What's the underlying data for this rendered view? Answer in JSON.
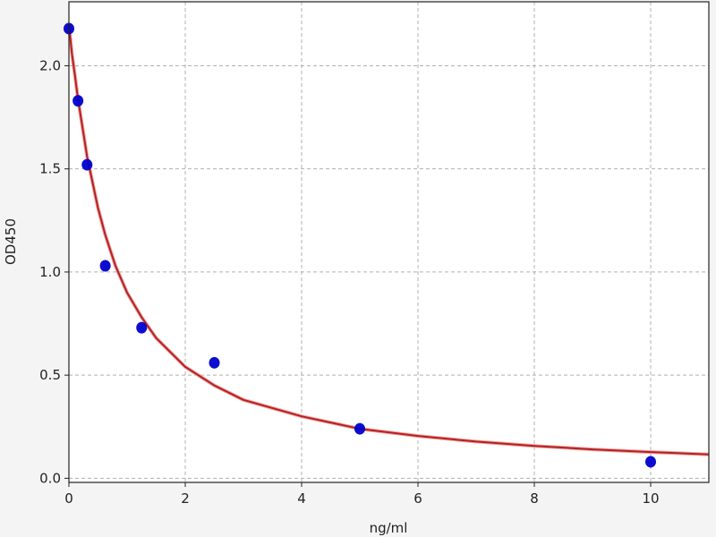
{
  "chart_data": {
    "type": "scatter",
    "title": "",
    "xlabel": "ng/ml",
    "ylabel": "OD450",
    "xlim": [
      0,
      11
    ],
    "ylim": [
      -0.02,
      2.31
    ],
    "xticks": [
      "0",
      "2",
      "4",
      "6",
      "8",
      "10"
    ],
    "xtick_values": [
      0,
      2,
      4,
      6,
      8,
      10
    ],
    "yticks": [
      "0.0",
      "0.5",
      "1.0",
      "1.5",
      "2.0"
    ],
    "ytick_values": [
      0,
      0.5,
      1.0,
      1.5,
      2.0
    ],
    "grid": true,
    "points": {
      "x": [
        0,
        0.156,
        0.312,
        0.625,
        1.25,
        2.5,
        5,
        10
      ],
      "y": [
        2.18,
        1.83,
        1.52,
        1.03,
        0.73,
        0.56,
        0.24,
        0.08
      ],
      "color": "#0000cc"
    },
    "fit_curve": {
      "x": [
        0,
        0.05,
        0.1,
        0.156,
        0.25,
        0.312,
        0.5,
        0.625,
        0.8,
        1,
        1.25,
        1.5,
        2,
        2.5,
        3,
        4,
        5,
        6,
        7,
        8,
        9,
        10,
        11
      ],
      "y": [
        2.2,
        2.06,
        1.96,
        1.84,
        1.67,
        1.56,
        1.31,
        1.18,
        1.03,
        0.9,
        0.78,
        0.68,
        0.54,
        0.45,
        0.38,
        0.3,
        0.24,
        0.205,
        0.178,
        0.157,
        0.14,
        0.127,
        0.116
      ],
      "color": "#b22222"
    }
  }
}
